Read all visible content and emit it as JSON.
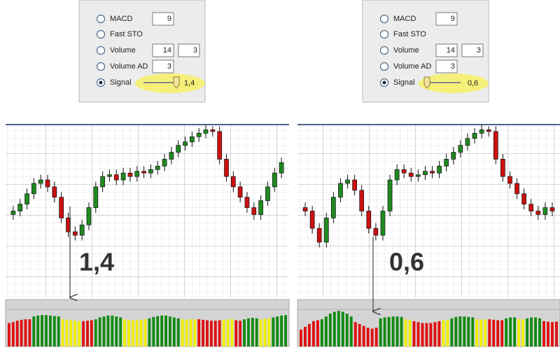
{
  "dialogs": [
    {
      "rows": [
        {
          "label": "MACD",
          "inputs": [
            9
          ]
        },
        {
          "label": "Fast STO",
          "inputs": []
        },
        {
          "label": "Volume",
          "inputs": [
            14,
            3
          ]
        },
        {
          "label": "Volume AD",
          "inputs": [
            3
          ]
        },
        {
          "label": "Signal",
          "slider_value": "1,4"
        }
      ]
    },
    {
      "rows": [
        {
          "label": "MACD",
          "inputs": [
            9
          ]
        },
        {
          "label": "Fast STO",
          "inputs": []
        },
        {
          "label": "Volume",
          "inputs": [
            14,
            3
          ]
        },
        {
          "label": "Volume AD",
          "inputs": [
            3
          ]
        },
        {
          "label": "Signal",
          "slider_value": "0,6"
        }
      ]
    }
  ],
  "chart_data": [
    {
      "type": "candlestick",
      "annotation": "1,4",
      "ylim": [
        0,
        100
      ],
      "open": [
        48,
        50,
        54,
        60,
        66,
        68,
        64,
        58,
        46,
        38,
        36,
        42,
        52,
        64,
        70,
        71,
        68,
        72,
        70,
        73,
        72,
        74,
        76,
        80,
        84,
        88,
        90,
        93,
        95,
        97,
        96,
        80,
        70,
        64,
        58,
        52,
        48,
        56,
        64,
        72
      ],
      "high": [
        53,
        57,
        63,
        69,
        71,
        71,
        67,
        61,
        49,
        41,
        45,
        55,
        67,
        73,
        74,
        74,
        75,
        75,
        76,
        76,
        77,
        79,
        83,
        87,
        91,
        93,
        96,
        98,
        100,
        99,
        99,
        83,
        73,
        67,
        61,
        55,
        59,
        67,
        75,
        81
      ],
      "low": [
        45,
        47,
        51,
        57,
        63,
        61,
        55,
        43,
        35,
        33,
        33,
        39,
        49,
        61,
        67,
        65,
        65,
        67,
        67,
        69,
        69,
        71,
        73,
        77,
        81,
        85,
        87,
        90,
        92,
        93,
        77,
        67,
        61,
        55,
        49,
        45,
        45,
        53,
        61,
        69
      ],
      "close": [
        50,
        54,
        60,
        66,
        68,
        64,
        58,
        46,
        38,
        36,
        42,
        52,
        64,
        70,
        71,
        68,
        72,
        70,
        73,
        72,
        74,
        76,
        80,
        84,
        88,
        90,
        93,
        95,
        97,
        96,
        80,
        70,
        64,
        58,
        52,
        48,
        56,
        64,
        72,
        78
      ],
      "up_color": "#1f8a1f",
      "down_color": "#cc1010",
      "histogram_ylim": [
        0,
        100
      ],
      "histogram": [
        {
          "color": "#e01010",
          "values": [
            50,
            52,
            55,
            57,
            58,
            58
          ]
        },
        {
          "color": "#108a10",
          "values": [
            64,
            66,
            67,
            67,
            66,
            65,
            64
          ]
        },
        {
          "color": "#f0f000",
          "values": [
            58,
            57,
            56,
            55,
            54
          ]
        },
        {
          "color": "#e01010",
          "values": [
            54,
            55,
            56
          ]
        },
        {
          "color": "#108a10",
          "values": [
            58,
            62,
            64,
            66,
            66,
            64,
            62
          ]
        },
        {
          "color": "#f0f000",
          "values": [
            58,
            56,
            56,
            56,
            57,
            58
          ]
        },
        {
          "color": "#108a10",
          "values": [
            60,
            63,
            65,
            66,
            66,
            64,
            62,
            60
          ]
        },
        {
          "color": "#f0f000",
          "values": [
            58,
            57,
            58,
            58
          ]
        },
        {
          "color": "#e01010",
          "values": [
            58,
            57,
            56,
            55,
            55,
            56
          ]
        },
        {
          "color": "#f0f000",
          "values": [
            57,
            58,
            58
          ]
        },
        {
          "color": "#e01010",
          "values": [
            56,
            55
          ]
        },
        {
          "color": "#108a10",
          "values": [
            58,
            60,
            61,
            60
          ]
        },
        {
          "color": "#f0f000",
          "values": [
            58,
            59,
            60
          ]
        },
        {
          "color": "#108a10",
          "values": [
            62,
            64,
            66,
            67
          ]
        }
      ]
    },
    {
      "type": "candlestick",
      "annotation": "0,6",
      "ylim": [
        0,
        100
      ],
      "open": [
        52,
        50,
        40,
        32,
        46,
        58,
        66,
        68,
        62,
        50,
        40,
        36,
        50,
        68,
        74,
        72,
        70,
        71,
        73,
        72,
        76,
        80,
        84,
        88,
        92,
        95,
        97,
        96,
        80,
        70,
        66,
        60,
        54,
        50,
        48,
        52
      ],
      "high": [
        55,
        53,
        43,
        49,
        61,
        69,
        71,
        71,
        65,
        53,
        43,
        53,
        71,
        77,
        77,
        75,
        74,
        76,
        76,
        79,
        83,
        87,
        91,
        95,
        98,
        100,
        99,
        99,
        83,
        73,
        69,
        63,
        57,
        53,
        55,
        55
      ],
      "low": [
        47,
        37,
        29,
        29,
        43,
        55,
        63,
        59,
        47,
        37,
        33,
        33,
        47,
        65,
        69,
        67,
        67,
        68,
        69,
        69,
        73,
        77,
        81,
        85,
        89,
        92,
        93,
        77,
        67,
        63,
        57,
        51,
        47,
        45,
        45,
        47
      ],
      "close": [
        50,
        40,
        32,
        46,
        58,
        66,
        68,
        62,
        50,
        40,
        36,
        50,
        68,
        74,
        72,
        70,
        71,
        73,
        72,
        76,
        80,
        84,
        88,
        92,
        95,
        97,
        96,
        80,
        70,
        66,
        60,
        54,
        50,
        48,
        52,
        50
      ],
      "up_color": "#1f8a1f",
      "down_color": "#cc1010",
      "histogram_ylim": [
        0,
        100
      ],
      "histogram": [
        {
          "color": "#e01010",
          "values": [
            36,
            42,
            48,
            54,
            56
          ]
        },
        {
          "color": "#108a10",
          "values": [
            58,
            64,
            70,
            74,
            76,
            74,
            70,
            64
          ]
        },
        {
          "color": "#e01010",
          "values": [
            52,
            48,
            44,
            40,
            38,
            40
          ]
        },
        {
          "color": "#108a10",
          "values": [
            60,
            62,
            63,
            64,
            64,
            63
          ]
        },
        {
          "color": "#f0f000",
          "values": [
            58,
            57
          ]
        },
        {
          "color": "#e01010",
          "values": [
            54,
            52,
            50,
            50,
            50,
            52,
            54
          ]
        },
        {
          "color": "#f0f000",
          "values": [
            56,
            57
          ]
        },
        {
          "color": "#108a10",
          "values": [
            60,
            63,
            64,
            64,
            63,
            62
          ]
        },
        {
          "color": "#f0f000",
          "values": [
            58,
            57,
            58
          ]
        },
        {
          "color": "#e01010",
          "values": [
            58,
            57,
            56,
            56
          ]
        },
        {
          "color": "#108a10",
          "values": [
            60,
            62,
            62
          ]
        },
        {
          "color": "#f0f000",
          "values": [
            58,
            58
          ]
        },
        {
          "color": "#108a10",
          "values": [
            60,
            62,
            62,
            60
          ]
        },
        {
          "color": "#e01010",
          "values": [
            54,
            53,
            52,
            53
          ]
        }
      ]
    }
  ]
}
